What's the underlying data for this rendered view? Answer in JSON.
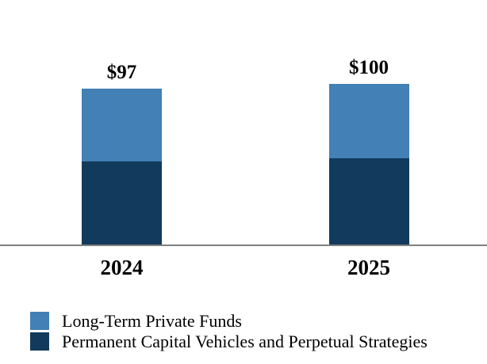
{
  "chart_data": {
    "type": "bar",
    "stacked": true,
    "title": "",
    "xlabel": "",
    "ylabel": "",
    "categories": [
      "2024",
      "2025"
    ],
    "series": [
      {
        "name": "Long-Term Private Funds",
        "color": "#4380B5",
        "values": [
          45,
          46
        ]
      },
      {
        "name": "Permanent Capital Vehicles and Perpetual Strategies",
        "color": "#123A5C",
        "values": [
          52,
          54
        ]
      }
    ],
    "totals": [
      97,
      100
    ],
    "total_labels": [
      "$97",
      "$100"
    ],
    "ylim": [
      0,
      100
    ],
    "grid": false,
    "legend_position": "bottom-left",
    "axis_line_color": "#7F7F7F",
    "background_color": "#FFFFFF",
    "text_color": "#000000"
  }
}
